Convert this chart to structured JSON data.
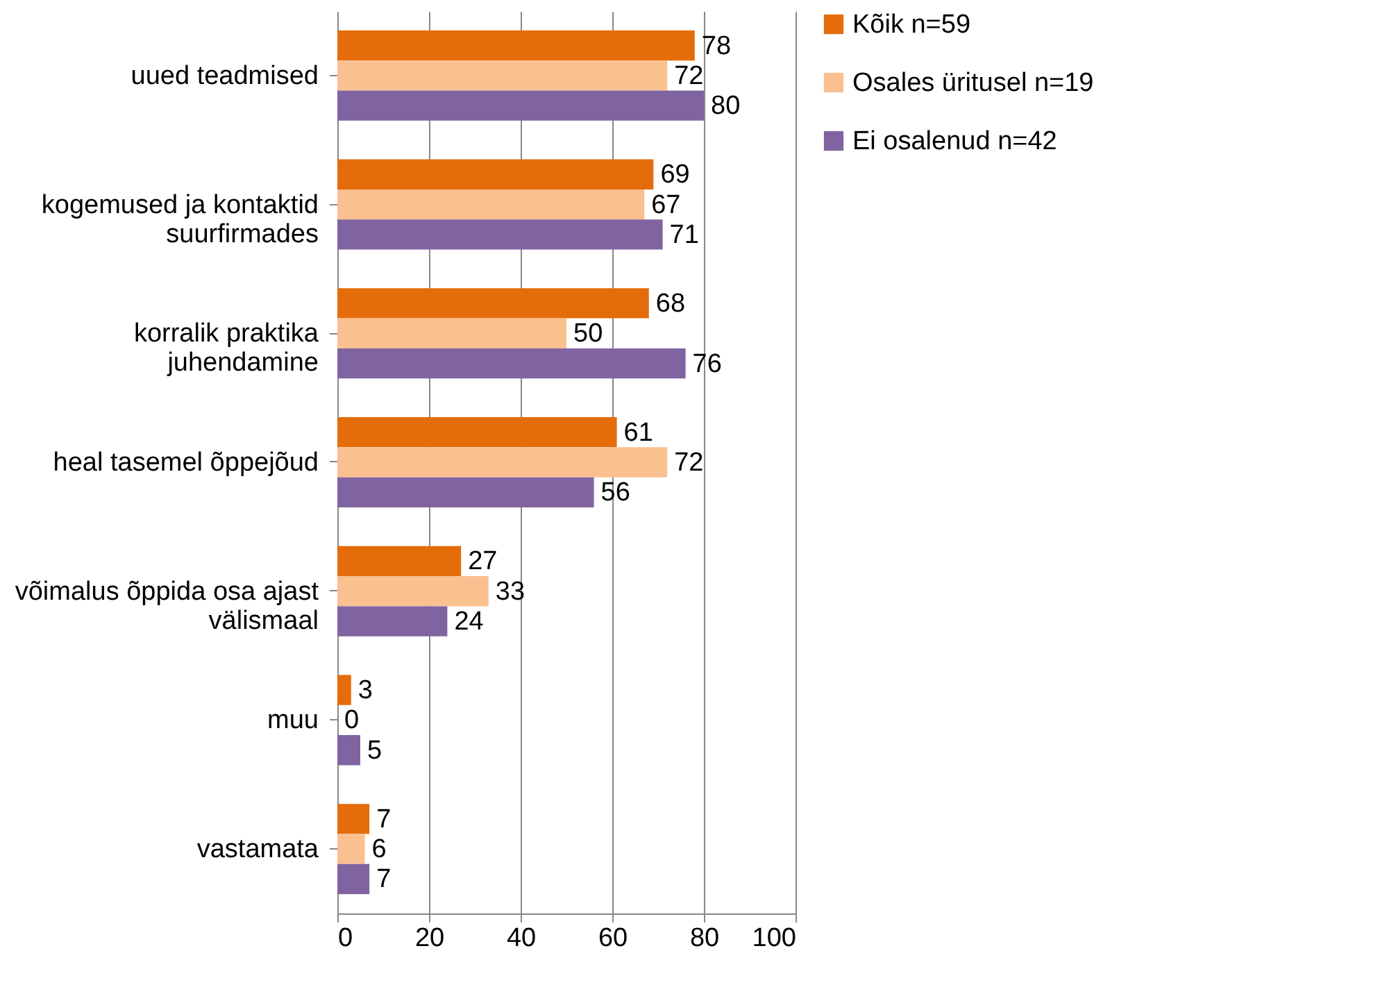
{
  "chart_data": {
    "type": "bar",
    "orientation": "horizontal",
    "categories": [
      "uued teadmised",
      "kogemused ja kontaktid\nsuurfirmades",
      "korralik praktika\njuhendamine",
      "heal tasemel õppejõud",
      "võimalus õppida osa ajast\nvälismaal",
      "muu",
      "vastamata"
    ],
    "series": [
      {
        "name": "Kõik n=59",
        "color": "#e46c0a",
        "values": [
          78,
          69,
          68,
          61,
          27,
          3,
          7
        ]
      },
      {
        "name": "Osales üritusel n=19",
        "color": "#fac090",
        "values": [
          72,
          67,
          50,
          72,
          33,
          0,
          6
        ]
      },
      {
        "name": "Ei osalenud n=42",
        "color": "#8064a2",
        "values": [
          80,
          71,
          76,
          56,
          24,
          5,
          7
        ]
      }
    ],
    "xlim": [
      0,
      100
    ],
    "xticks": [
      0,
      20,
      40,
      60,
      80,
      100
    ],
    "grid": "x",
    "legend": "right",
    "data_labels": true
  }
}
